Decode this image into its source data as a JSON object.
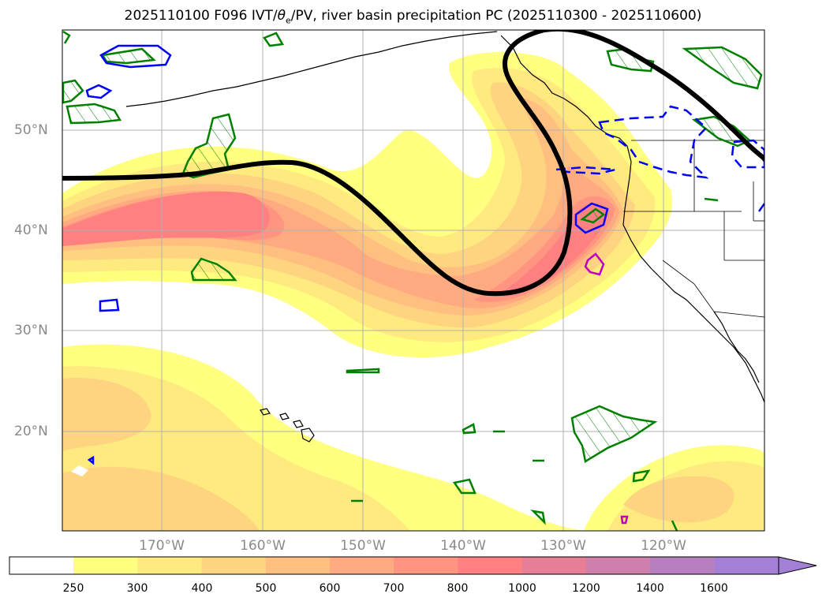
{
  "title_prefix": "2025110100 F096 IVT/",
  "title_theta": "θ",
  "title_sub": "e",
  "title_suffix": "/PV, river basin precipitation PC (2025110300 - 2025110600)",
  "lat_labels": [
    "50°N",
    "40°N",
    "30°N",
    "20°N"
  ],
  "lon_labels": [
    "170°W",
    "160°W",
    "150°W",
    "140°W",
    "130°W",
    "120°W"
  ],
  "colorbar": {
    "levels": [
      "250",
      "300",
      "400",
      "500",
      "600",
      "700",
      "800",
      "1000",
      "1200",
      "1400",
      "1600"
    ],
    "colors": [
      "#ffffff",
      "#ffff80",
      "#ffea80",
      "#ffd480",
      "#ffbf80",
      "#ffaa80",
      "#ff9580",
      "#ff8080",
      "#e67f95",
      "#cf7fab",
      "#b87fc0",
      "#a37fd5"
    ]
  },
  "contour_colors": {
    "pv_line": "#000000",
    "precip_positive": "#008000",
    "precip_negative": "#0000ff",
    "precip_extreme": "#c000c0",
    "coastline": "#000000",
    "grid": "#b0b0b0"
  }
}
